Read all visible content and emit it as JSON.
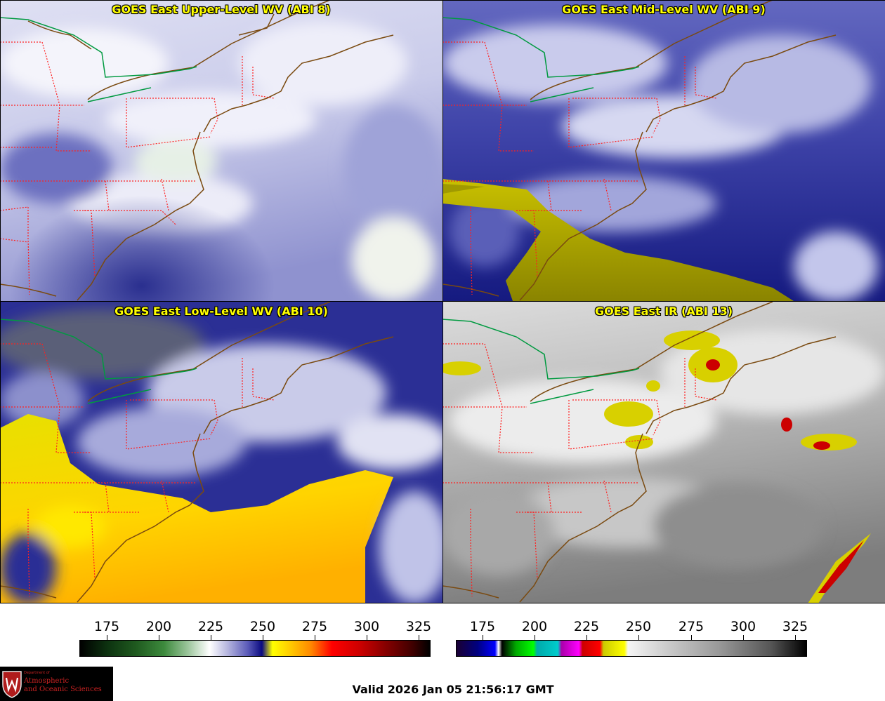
{
  "panels": [
    {
      "title": "GOES East Upper-Level WV (ABI 8)"
    },
    {
      "title": "GOES East Mid-Level WV (ABI 9)"
    },
    {
      "title": "GOES East Low-Level WV (ABI 10)"
    },
    {
      "title": "GOES East IR (ABI 13)"
    }
  ],
  "colorbars": {
    "wv": {
      "ticks": [
        "175",
        "200",
        "225",
        "250",
        "275",
        "300",
        "325"
      ]
    },
    "ir": {
      "ticks": [
        "175",
        "200",
        "225",
        "250",
        "275",
        "300",
        "325"
      ]
    }
  },
  "logo": {
    "dept": "Department of",
    "line1": "Atmospheric",
    "line2": "and Oceanic Sciences"
  },
  "valid_time": "Valid 2026 Jan 05 21:56:17 GMT",
  "colors": {
    "title_text": "#ffff00",
    "state_borders": "#ff2020",
    "coastline": "#7a4a10",
    "international_border": "#00a040",
    "logo_red": "#cc2222"
  }
}
